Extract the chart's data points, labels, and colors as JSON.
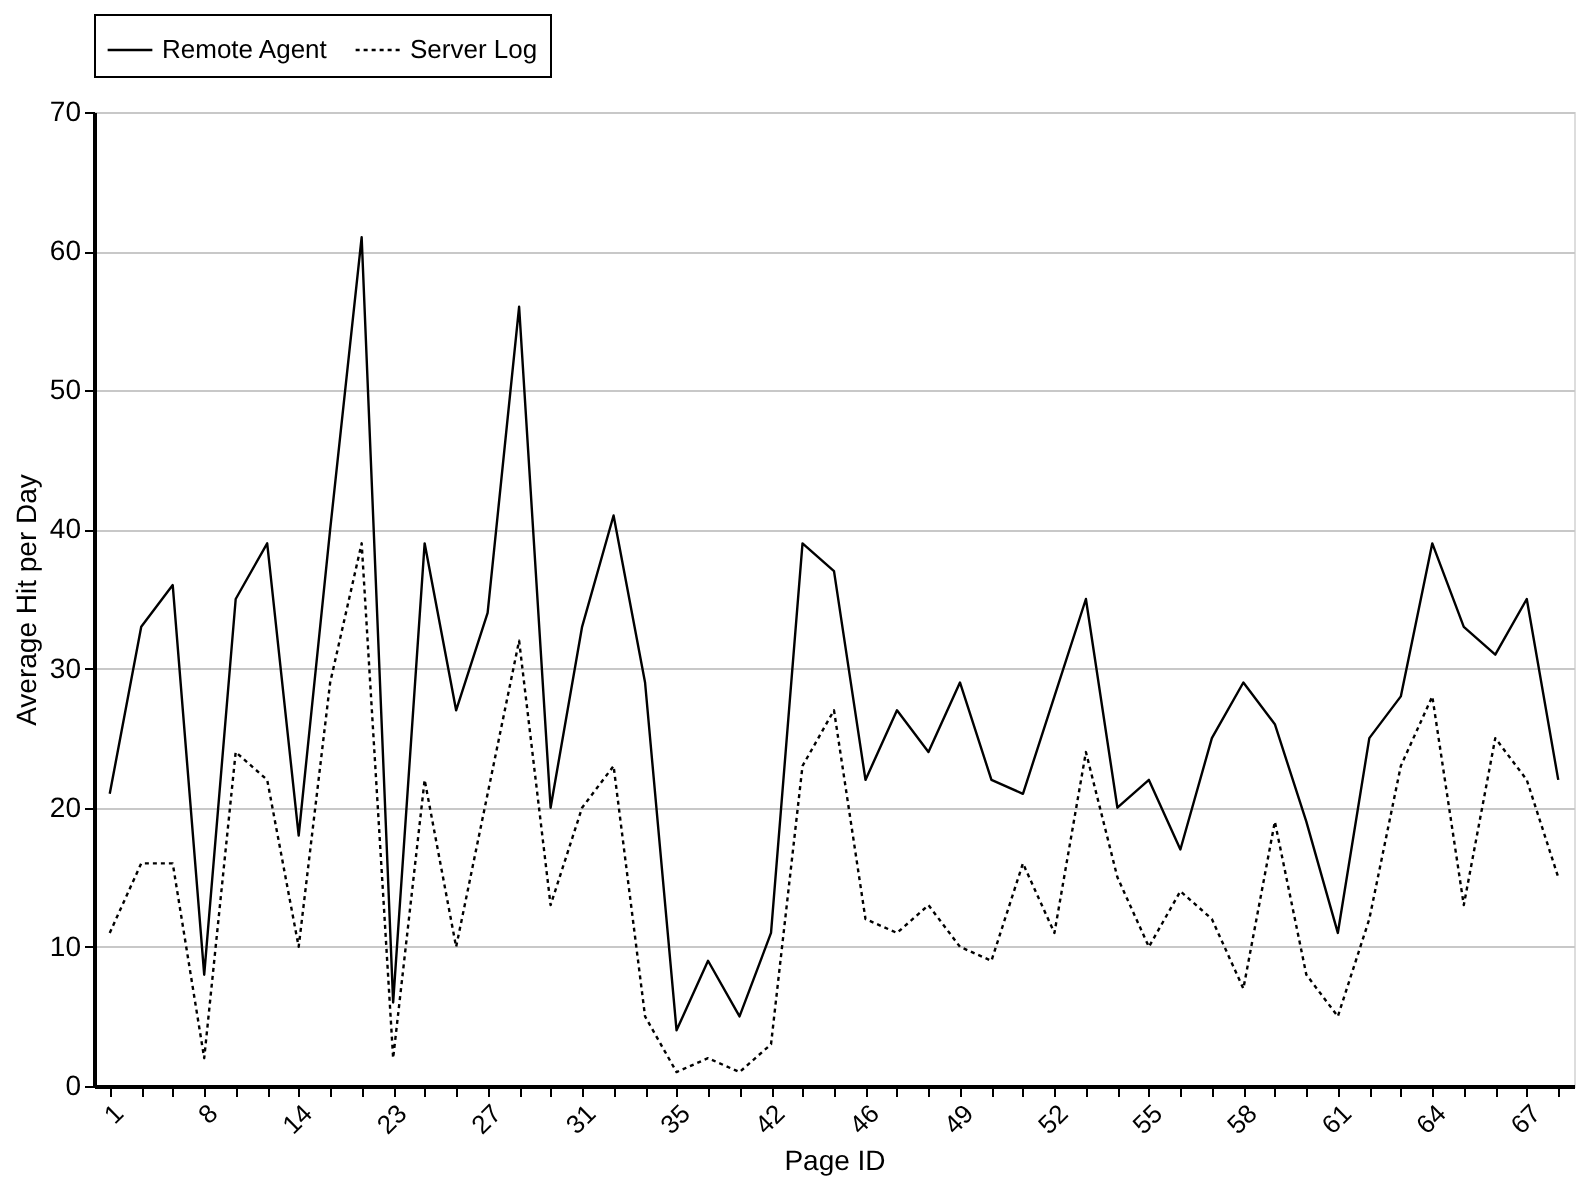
{
  "chart_data": {
    "type": "line",
    "xlabel": "Page ID",
    "ylabel": "Average Hit per Day",
    "categories": [
      "1",
      null,
      null,
      "8",
      null,
      null,
      "14",
      null,
      null,
      "23",
      null,
      null,
      "27",
      null,
      null,
      "31",
      null,
      null,
      "35",
      null,
      null,
      "42",
      null,
      null,
      "46",
      null,
      null,
      "49",
      null,
      null,
      "52",
      null,
      null,
      "55",
      null,
      null,
      "58",
      null,
      null,
      "61",
      null,
      null,
      "64",
      null,
      null,
      "67",
      null
    ],
    "series": [
      {
        "name": "Remote Agent",
        "color": "#000000",
        "line_style": "solid",
        "values": [
          21,
          33,
          36,
          8,
          35,
          39,
          18,
          40,
          61,
          6,
          39,
          27,
          34,
          56,
          20,
          33,
          41,
          29,
          4,
          9,
          5,
          11,
          39,
          37,
          22,
          27,
          24,
          29,
          22,
          21,
          28,
          35,
          20,
          22,
          17,
          25,
          29,
          26,
          19,
          11,
          25,
          28,
          39,
          33,
          31,
          35,
          22
        ]
      },
      {
        "name": "Server Log",
        "color": "#000000",
        "line_style": "dotted",
        "values": [
          11,
          16,
          16,
          2,
          24,
          22,
          10,
          29,
          39,
          2,
          22,
          10,
          21,
          32,
          13,
          20,
          23,
          5,
          1,
          2,
          1,
          3,
          23,
          27,
          12,
          11,
          13,
          10,
          9,
          16,
          11,
          24,
          15,
          10,
          14,
          12,
          7,
          19,
          8,
          5,
          12,
          23,
          28,
          13,
          25,
          22,
          15
        ]
      }
    ],
    "ylim": [
      0,
      70
    ],
    "yticks": [
      0,
      10,
      20,
      30,
      40,
      50,
      60,
      70
    ],
    "grid": "y",
    "legend": "top",
    "marker": "none"
  }
}
